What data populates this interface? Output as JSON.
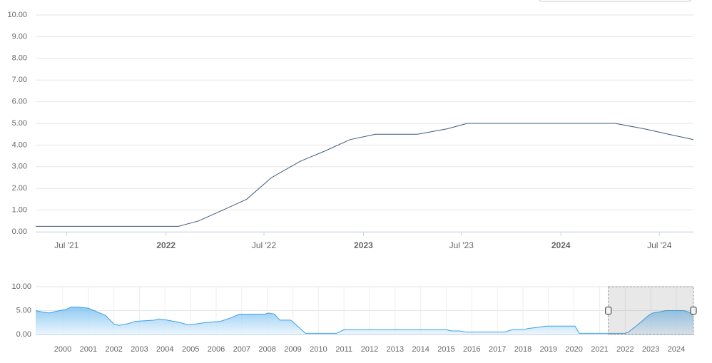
{
  "chart_data": [
    {
      "type": "line",
      "grid": true,
      "ylim": [
        0,
        10
      ],
      "yticks": [
        {
          "value": 0,
          "label": "0.00"
        },
        {
          "value": 1,
          "label": "1.00"
        },
        {
          "value": 2,
          "label": "2.00"
        },
        {
          "value": 3,
          "label": "3.00"
        },
        {
          "value": 4,
          "label": "4.00"
        },
        {
          "value": 5,
          "label": "5.00"
        },
        {
          "value": 6,
          "label": "6.00"
        },
        {
          "value": 7,
          "label": "7.00"
        },
        {
          "value": 8,
          "label": "8.00"
        },
        {
          "value": 9,
          "label": "9.00"
        },
        {
          "value": 10,
          "label": "10.00"
        }
      ],
      "xlim": [
        "2021-05-05",
        "2024-09-02"
      ],
      "xticks": [
        {
          "value": "2021-07-01",
          "label": "Jul '21"
        },
        {
          "value": "2022-01-01",
          "label": "2022"
        },
        {
          "value": "2022-07-01",
          "label": "Jul '22"
        },
        {
          "value": "2023-01-01",
          "label": "2023"
        },
        {
          "value": "2023-07-01",
          "label": "Jul '23"
        },
        {
          "value": "2024-01-01",
          "label": "2024"
        },
        {
          "value": "2024-07-01",
          "label": "Jul '24"
        }
      ],
      "series": [
        {
          "color": "#3d5a80",
          "x": [
            "2021-05-05",
            "2022-01-24",
            "2022-03-02",
            "2022-04-16",
            "2022-05-30",
            "2022-07-15",
            "2022-09-06",
            "2022-10-24",
            "2022-12-07",
            "2023-01-23",
            "2023-04-11",
            "2023-06-05",
            "2023-07-12",
            "2024-04-10",
            "2024-06-03",
            "2024-07-18",
            "2024-09-02"
          ],
          "values": [
            0.25,
            0.25,
            0.5,
            1.0,
            1.5,
            2.5,
            3.25,
            3.75,
            4.25,
            4.5,
            4.5,
            4.75,
            5.0,
            5.0,
            4.75,
            4.5,
            4.25
          ]
        }
      ]
    },
    {
      "type": "area",
      "grid": true,
      "ylim": [
        0,
        10
      ],
      "yticks": [
        {
          "value": 0,
          "label": "0.00"
        },
        {
          "value": 5,
          "label": "5.00"
        },
        {
          "value": 10,
          "label": "10.00"
        }
      ],
      "xlim": [
        "1998-12-10",
        "2024-09-02"
      ],
      "xticks": [
        {
          "value": "2000-01-01",
          "label": "2000"
        },
        {
          "value": "2001-01-01",
          "label": "2001"
        },
        {
          "value": "2002-01-01",
          "label": "2002"
        },
        {
          "value": "2003-01-01",
          "label": "2003"
        },
        {
          "value": "2004-01-01",
          "label": "2004"
        },
        {
          "value": "2005-01-01",
          "label": "2005"
        },
        {
          "value": "2006-01-01",
          "label": "2006"
        },
        {
          "value": "2007-01-01",
          "label": "2007"
        },
        {
          "value": "2008-01-01",
          "label": "2008"
        },
        {
          "value": "2009-01-01",
          "label": "2009"
        },
        {
          "value": "2010-01-01",
          "label": "2010"
        },
        {
          "value": "2011-01-01",
          "label": "2011"
        },
        {
          "value": "2012-01-01",
          "label": "2012"
        },
        {
          "value": "2013-01-01",
          "label": "2013"
        },
        {
          "value": "2014-01-01",
          "label": "2014"
        },
        {
          "value": "2015-01-01",
          "label": "2015"
        },
        {
          "value": "2016-01-01",
          "label": "2016"
        },
        {
          "value": "2017-01-01",
          "label": "2017"
        },
        {
          "value": "2018-01-01",
          "label": "2018"
        },
        {
          "value": "2019-01-01",
          "label": "2019"
        },
        {
          "value": "2020-01-01",
          "label": "2020"
        },
        {
          "value": "2021-01-01",
          "label": "2021"
        },
        {
          "value": "2022-01-01",
          "label": "2022"
        },
        {
          "value": "2023-01-01",
          "label": "2023"
        },
        {
          "value": "2024-01-01",
          "label": "2024"
        }
      ],
      "selection": [
        "2021-05-05",
        "2024-09-02"
      ],
      "series": [
        {
          "color": "#3ea0e6",
          "x": [
            "1998-12-10",
            "1999-03-01",
            "1999-06-15",
            "1999-11-15",
            "2000-02-15",
            "2000-05-01",
            "2000-08-15",
            "2001-01-01",
            "2001-09-01",
            "2002-01-01",
            "2002-03-15",
            "2002-08-01",
            "2002-11-01",
            "2003-08-01",
            "2003-10-15",
            "2004-02-01",
            "2004-08-01",
            "2004-12-01",
            "2005-04-15",
            "2005-08-01",
            "2006-03-01",
            "2006-08-01",
            "2006-12-01",
            "2007-12-01",
            "2008-01-15",
            "2008-04-15",
            "2008-07-01",
            "2008-12-01",
            "2009-04-15",
            "2009-07-01",
            "2010-09-15",
            "2011-01-01",
            "2015-01-01",
            "2015-03-15",
            "2015-07-01",
            "2015-10-15",
            "2017-04-15",
            "2017-08-01",
            "2018-01-01",
            "2018-03-15",
            "2018-08-01",
            "2018-12-01",
            "2020-01-15",
            "2020-03-15",
            "2022-01-01",
            "2022-02-15",
            "2022-05-15",
            "2022-09-15",
            "2022-12-01",
            "2023-02-01",
            "2023-05-15",
            "2023-08-01",
            "2024-04-15",
            "2024-06-15",
            "2024-09-02"
          ],
          "values": [
            5.0,
            4.75,
            4.5,
            5.0,
            5.25,
            5.75,
            5.75,
            5.5,
            4.0,
            2.2,
            1.9,
            2.3,
            2.75,
            3.0,
            3.25,
            3.0,
            2.5,
            2.0,
            2.25,
            2.5,
            2.75,
            3.5,
            4.25,
            4.25,
            4.5,
            4.25,
            3.0,
            3.0,
            1.25,
            0.25,
            0.25,
            1.0,
            1.0,
            0.75,
            0.75,
            0.5,
            0.5,
            1.0,
            1.0,
            1.25,
            1.5,
            1.75,
            1.75,
            0.25,
            0.25,
            0.5,
            1.5,
            3.0,
            4.0,
            4.5,
            4.75,
            5.0,
            5.0,
            4.75,
            4.25
          ]
        }
      ]
    }
  ]
}
